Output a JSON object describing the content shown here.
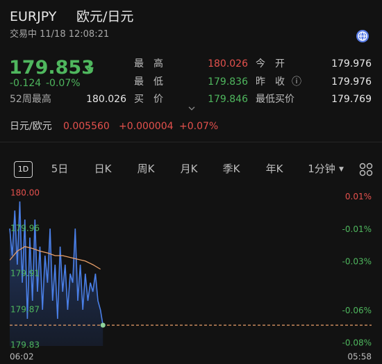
{
  "header": {
    "symbol": "EURJPY",
    "name": "欧元/日元",
    "status": "交易中 11/18 12:08:21"
  },
  "quote": {
    "price": "179.853",
    "change": "-0.124",
    "change_percent": "-0.07%",
    "week52_label": "52周最高",
    "week52_high": "180.026",
    "stats": [
      {
        "label": "最高",
        "value": "180.026",
        "color": "#e5514d"
      },
      {
        "label": "今开",
        "value": "179.976",
        "color": "#e8e8e8"
      },
      {
        "label": "最低",
        "value": "179.836",
        "color": "#4fb75e"
      },
      {
        "label": "昨收",
        "value": "179.976",
        "color": "#e8e8e8"
      },
      {
        "label": "买价",
        "value": "179.846",
        "color": "#4fb75e"
      },
      {
        "label": "最低买价",
        "value": "179.769",
        "color": "#e8e8e8"
      }
    ]
  },
  "cross": {
    "label": "日元/欧元",
    "value": "0.005560",
    "change": "+0.000004",
    "change_percent": "+0.07%"
  },
  "tabs": [
    "1D",
    "5日",
    "日K",
    "周K",
    "月K",
    "季K",
    "年K",
    "1分钟"
  ],
  "chart_data": {
    "type": "line",
    "x": [
      0,
      10,
      20,
      30,
      40,
      50,
      60,
      70,
      80,
      90,
      100,
      110,
      120,
      130,
      140,
      150,
      160,
      170,
      180,
      190,
      200,
      210,
      220,
      230,
      240,
      250,
      260,
      270,
      280,
      290,
      300,
      310,
      320,
      330,
      340,
      350,
      360,
      370
    ],
    "series": [
      {
        "color": "#4a7fe6",
        "values": [
          179.96,
          179.93,
          179.98,
          179.92,
          179.99,
          179.9,
          179.97,
          179.86,
          179.95,
          179.88,
          179.97,
          179.89,
          179.94,
          179.87,
          179.93,
          179.9,
          179.96,
          179.88,
          179.92,
          179.86,
          179.94,
          179.89,
          179.92,
          179.87,
          179.91,
          179.9,
          179.96,
          179.88,
          179.92,
          179.87,
          179.91,
          179.88,
          179.9,
          179.89,
          179.91,
          179.88,
          179.87,
          179.853
        ]
      },
      {
        "color": "#e9a06a",
        "x": [
          0,
          30,
          60,
          90,
          120,
          150,
          180,
          210,
          240,
          270,
          300,
          330,
          360
        ],
        "values": [
          179.925,
          179.935,
          179.94,
          179.938,
          179.935,
          179.933,
          179.93,
          179.93,
          179.928,
          179.926,
          179.924,
          179.92,
          179.915
        ]
      }
    ],
    "xlim": [
      0,
      1436
    ],
    "xticks": [
      {
        "value": 0,
        "label": "06:02"
      },
      {
        "value": 1436,
        "label": "05:58"
      }
    ],
    "ylim": [
      179.83,
      180.0
    ],
    "yticks": [
      {
        "value": 180.0,
        "label": "180.00"
      },
      179.96,
      179.91,
      179.87,
      179.83
    ],
    "y2lim": [
      -0.0817,
      0.0128
    ],
    "y2ticks": [
      {
        "value": 0.01,
        "label": "0.01%"
      },
      {
        "value": -0.01,
        "label": "-0.01%"
      },
      {
        "value": -0.03,
        "label": "-0.03%"
      },
      {
        "value": -0.06,
        "label": "-0.06%"
      },
      {
        "value": -0.08,
        "label": "-0.08%"
      }
    ]
  }
}
